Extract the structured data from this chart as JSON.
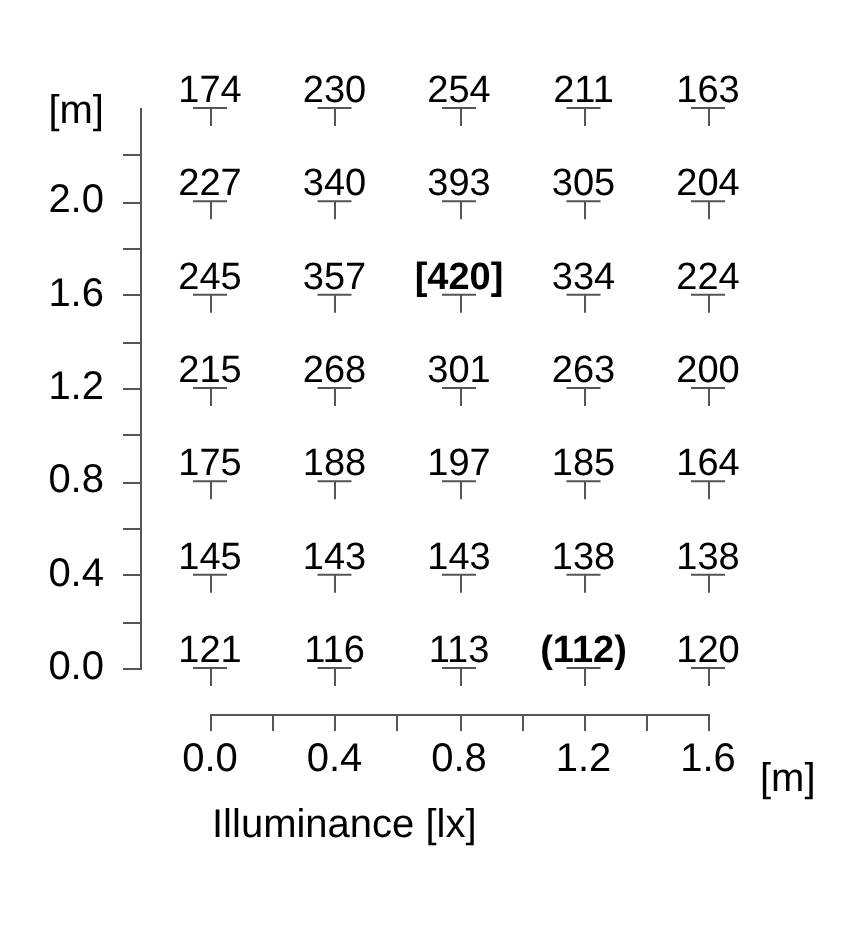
{
  "chart_data": {
    "type": "heatmap",
    "categories": [
      "0.0",
      "0.4",
      "0.8",
      "1.2",
      "1.6"
    ],
    "y_categories": [
      null,
      "2.0",
      "1.6",
      "1.2",
      "0.8",
      "0.4",
      "0.0"
    ],
    "cells": [
      [
        174,
        230,
        254,
        211,
        163
      ],
      [
        227,
        340,
        393,
        305,
        204
      ],
      [
        245,
        357,
        420,
        334,
        224
      ],
      [
        215,
        268,
        301,
        263,
        200
      ],
      [
        175,
        188,
        197,
        185,
        164
      ],
      [
        145,
        143,
        143,
        138,
        138
      ],
      [
        121,
        116,
        113,
        112,
        120
      ]
    ],
    "cell_labels": [
      [
        "174",
        "230",
        "254",
        "211",
        "163"
      ],
      [
        "227",
        "340",
        "393",
        "305",
        "204"
      ],
      [
        "245",
        "357",
        "[420]",
        "334",
        "224"
      ],
      [
        "215",
        "268",
        "301",
        "263",
        "200"
      ],
      [
        "175",
        "188",
        "197",
        "185",
        "164"
      ],
      [
        "145",
        "143",
        "143",
        "138",
        "138"
      ],
      [
        "121",
        "116",
        "113",
        "(112)",
        "120"
      ]
    ],
    "xlabel": "[m]",
    "ylabel": "[m]",
    "annotations": [
      "Illuminance [lx]"
    ]
  }
}
